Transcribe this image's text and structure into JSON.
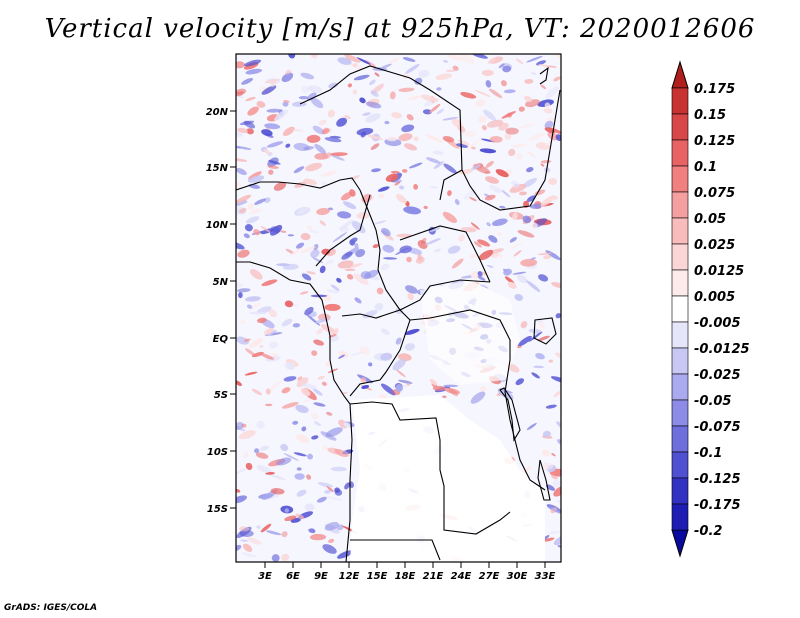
{
  "title": "Vertical velocity [m/s] at 925hPa, VT: 2020012606",
  "credit": "GrADS: IGES/COLA",
  "map": {
    "lat_ticks": [
      "20N",
      "15N",
      "10N",
      "5N",
      "EQ",
      "5S",
      "10S",
      "15S"
    ],
    "lon_ticks": [
      "3E",
      "6E",
      "9E",
      "12E",
      "15E",
      "18E",
      "21E",
      "24E",
      "27E",
      "30E",
      "33E"
    ]
  },
  "colorbar": {
    "labels": [
      "0.175",
      "0.15",
      "0.125",
      "0.1",
      "0.075",
      "0.05",
      "0.025",
      "0.0125",
      "0.005",
      "-0.005",
      "-0.0125",
      "-0.025",
      "-0.05",
      "-0.075",
      "-0.1",
      "-0.125",
      "-0.175",
      "-0.2"
    ],
    "colors": [
      "#b01e1e",
      "#c83232",
      "#d84848",
      "#e86464",
      "#f08080",
      "#f5a0a0",
      "#f8bcbc",
      "#fbd6d6",
      "#fdeaea",
      "#ffffff",
      "#e6e6fa",
      "#c8c8f5",
      "#aaaaf0",
      "#8c8ce6",
      "#6e6edc",
      "#5050d2",
      "#3232c3",
      "#1e1eb4",
      "#0a0aa0"
    ]
  }
}
